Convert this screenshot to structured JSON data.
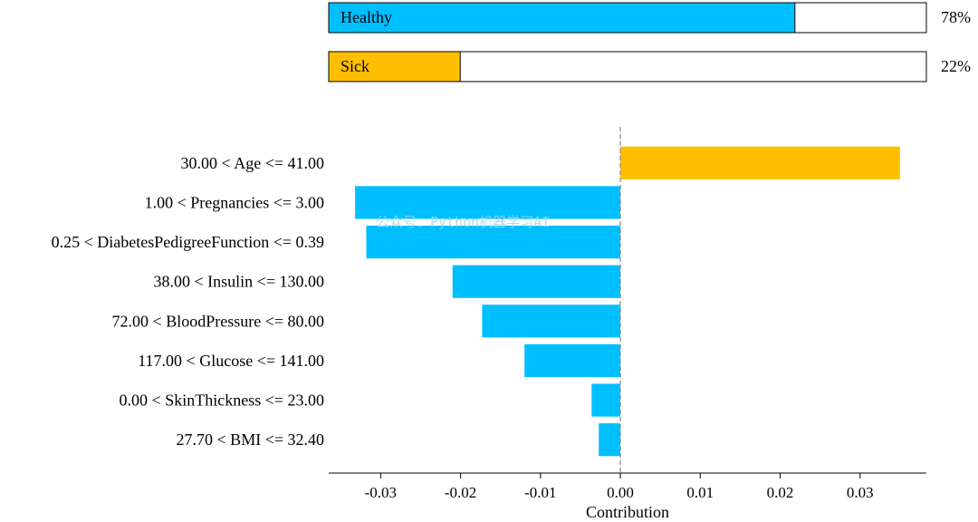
{
  "prediction": {
    "classes": [
      {
        "label": "Healthy",
        "probability": 0.78,
        "percent_label": "78%",
        "color": "#00bfff"
      },
      {
        "label": "Sick",
        "probability": 0.22,
        "percent_label": "22%",
        "color": "#ffbf00"
      }
    ]
  },
  "chart_data": {
    "type": "bar",
    "orientation": "horizontal",
    "categories": [
      "30.00 < Age <= 41.00",
      "1.00 < Pregnancies <= 3.00",
      "0.25 < DiabetesPedigreeFunction <= 0.39",
      "38.00 < Insulin <= 130.00",
      "72.00 < BloodPressure <= 80.00",
      "117.00 < Glucose <= 141.00",
      "0.00 < SkinThickness <= 23.00",
      "27.70 < BMI <= 32.40"
    ],
    "values": [
      0.035,
      -0.0332,
      -0.0318,
      -0.021,
      -0.0173,
      -0.012,
      -0.0036,
      -0.0027
    ],
    "xlabel": "Contribution",
    "xlim": [
      -0.0365,
      0.0383
    ],
    "xticks": [
      -0.03,
      -0.02,
      -0.01,
      0.0,
      0.01,
      0.02,
      0.03
    ],
    "xtick_labels": [
      "-0.03",
      "-0.02",
      "-0.01",
      "0.00",
      "0.01",
      "0.02",
      "0.03"
    ],
    "positive_color": "#ffbf00",
    "negative_color": "#00bfff",
    "zero_line": "dashed",
    "grid": false
  },
  "watermark": "公众号：Python机器学习AI"
}
